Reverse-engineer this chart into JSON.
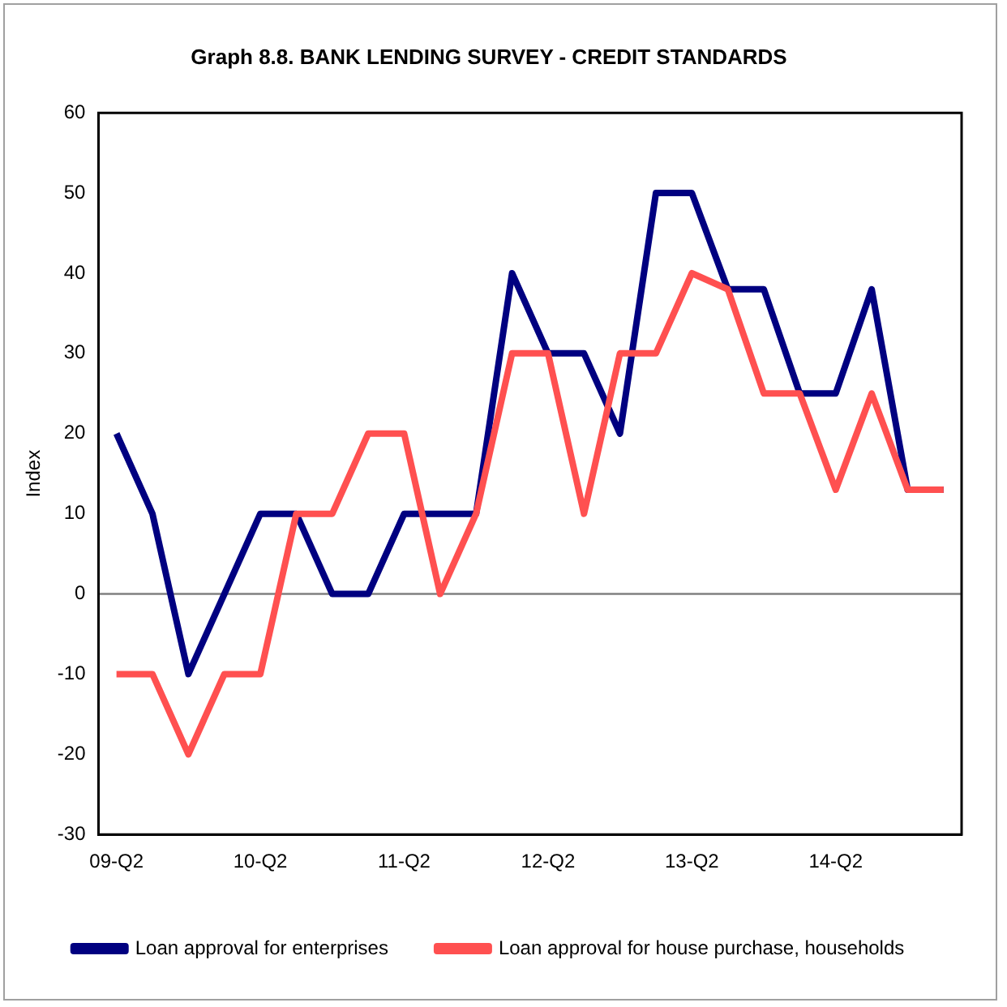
{
  "chart_data": {
    "type": "line",
    "title": "Graph 8.8. BANK LENDING SURVEY - CREDIT STANDARDS",
    "ylabel": "Index",
    "categories": [
      "09-Q2",
      null,
      null,
      null,
      "10-Q2",
      null,
      null,
      null,
      "11-Q2",
      null,
      null,
      null,
      "12-Q2",
      null,
      null,
      null,
      "13-Q2",
      null,
      null,
      null,
      "14-Q2",
      null,
      null,
      null
    ],
    "series": [
      {
        "name": "Loan approval for enterprises",
        "color": "#000080",
        "values": [
          20,
          10,
          -10,
          0,
          10,
          10,
          0,
          0,
          10,
          10,
          10,
          40,
          30,
          30,
          20,
          50,
          50,
          38,
          38,
          25,
          25,
          38,
          13,
          13
        ]
      },
      {
        "name": "Loan approval for house purchase, households",
        "color": "#ff5050",
        "values": [
          -10,
          -10,
          -20,
          -10,
          -10,
          10,
          10,
          20,
          20,
          0,
          10,
          30,
          30,
          10,
          30,
          30,
          40,
          38,
          25,
          25,
          13,
          25,
          13,
          13
        ]
      }
    ],
    "ylim": [
      -30,
      60
    ],
    "yticks": [
      -30,
      -20,
      -10,
      0,
      10,
      20,
      30,
      40,
      50,
      60
    ],
    "ref_lines": [
      {
        "axis": "y",
        "value": 0,
        "color": "#808080"
      }
    ],
    "grid": false,
    "legend": "bottom",
    "marker": "none",
    "line_style": "solid"
  }
}
